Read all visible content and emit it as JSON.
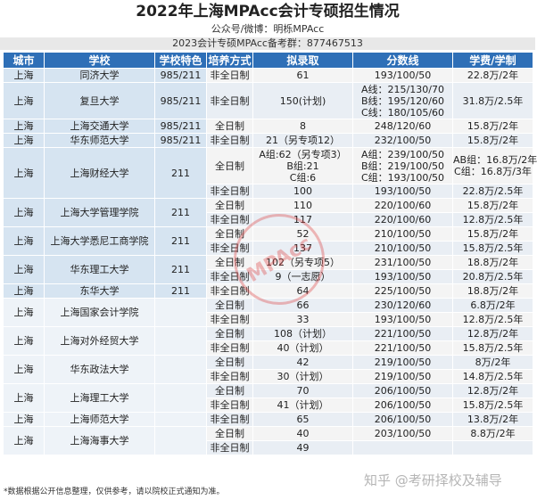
{
  "title": "2022年上海MPAcc会计专硕招生情况",
  "subtitle": "公众号/微博：明栎MPAcc",
  "contact": "2023会计专硕MPAcc备考群：877467513",
  "headers": [
    "城市",
    "学校",
    "学校特色",
    "培养方式",
    "拟录取",
    "分数线",
    "学费/学制"
  ],
  "note": "*数据根据公开信息整理，仅供参考，请以院校正式通知为准。",
  "watermark_seal": "MPAcc",
  "watermark_zhihu": "知乎 @考研择校及辅导",
  "colors": {
    "header": "#2e6fb7",
    "left_band": "#d6e4f1",
    "cell": "#f4f4f4"
  },
  "rows": [
    {
      "city": "上海",
      "school": "同济大学",
      "feature": "985/211",
      "mode": "非全日制",
      "admit": "61",
      "score": "193/100/50",
      "fee": "22.8万/2年"
    },
    {
      "city": "上海",
      "school": "复旦大学",
      "feature": "985/211",
      "mode": "非全日制",
      "admit": "150(计划)",
      "score": [
        "A线：215/130/70",
        "B线：195/120/60",
        "C线：180/105/60"
      ],
      "fee": "31.8万/2.5年"
    },
    {
      "city": "上海",
      "school": "上海交通大学",
      "feature": "985/211",
      "mode": "全日制",
      "admit": "8",
      "score": "248/120/60",
      "fee": "15.8万/2年"
    },
    {
      "city": "上海",
      "school": "华东师范大学",
      "feature": "985/211",
      "mode": "非全日制",
      "admit": "21（另专项12）",
      "score": "232/100/50",
      "fee": "15.8万/2年"
    },
    {
      "city": "上海",
      "school": "上海财经大学",
      "feature": "211",
      "sub": [
        {
          "mode": "全日制",
          "admit": [
            "A组:62（另专项3）",
            "B组:21",
            "C组:6"
          ],
          "score": [
            "A组：239/100/50",
            "B组：219/100/50",
            "C组：193/100/50"
          ],
          "fee": [
            "AB组：16.8万/2年",
            "C组：16.8万/3年"
          ]
        },
        {
          "mode": "非全日制",
          "admit": "100",
          "score": "193/100/50",
          "fee": "22.8万/2.5年"
        }
      ]
    },
    {
      "city": "上海",
      "school": "上海大学管理学院",
      "feature": "211",
      "sub": [
        {
          "mode": "全日制",
          "admit": "110",
          "score": "220/100/60",
          "fee": "15.8万/2年"
        },
        {
          "mode": "非全日制",
          "admit": "117",
          "score": "220/100/60",
          "fee": "12.8万/2.5年"
        }
      ]
    },
    {
      "city": "上海",
      "school": "上海大学悉尼工商学院",
      "feature": "211",
      "sub": [
        {
          "mode": "全日制",
          "admit": "52",
          "score": "210/100/50",
          "fee": "15.8万/2年"
        },
        {
          "mode": "非全日制",
          "admit": "137",
          "score": "210/100/50",
          "fee": "15.8万/2.5年"
        }
      ]
    },
    {
      "city": "上海",
      "school": "华东理工大学",
      "feature": "211",
      "sub": [
        {
          "mode": "全日制",
          "admit": "102（另专项5）",
          "score": "231/100/50",
          "fee": "18.8万/2年"
        },
        {
          "mode": "非全日制",
          "admit": "9（一志愿）",
          "score": "193/100/50",
          "fee": "20.8万/2.5年"
        }
      ]
    },
    {
      "city": "上海",
      "school": "东华大学",
      "feature": "211",
      "mode": "非全日制",
      "admit": "64",
      "score": "225/100/50",
      "fee": "18.8万/2年"
    },
    {
      "city": "上海",
      "school": "上海国家会计学院",
      "feature": "",
      "sub": [
        {
          "mode": "全日制",
          "admit": "66",
          "score": "230/120/60",
          "fee": "6.8万/2年"
        },
        {
          "mode": "非全日制",
          "admit": "33",
          "score": "193/100/50",
          "fee": "12.8万/2.5年"
        }
      ]
    },
    {
      "city": "上海",
      "school": "上海对外经贸大学",
      "feature": "",
      "sub": [
        {
          "mode": "全日制",
          "admit": "108（计划）",
          "score": "221/100/50",
          "fee": "12.8万/2年"
        },
        {
          "mode": "非全日制",
          "admit": "40（计划）",
          "score": "221/100/50",
          "fee": "15.8万/2.5年"
        }
      ]
    },
    {
      "city": "上海",
      "school": "华东政法大学",
      "feature": "",
      "sub": [
        {
          "mode": "全日制",
          "admit": "42",
          "score": "219/100/50",
          "fee": "8万/2年"
        },
        {
          "mode": "非全日制",
          "admit": "30（计划）",
          "score": "219/100/50",
          "fee": "14.8万/2.5年"
        }
      ]
    },
    {
      "city": "上海",
      "school": "上海理工大学",
      "feature": "",
      "sub": [
        {
          "mode": "全日制",
          "admit": "70",
          "score": "206/100/50",
          "fee": "12.8万/2年"
        },
        {
          "mode": "非全日制",
          "admit": "41（计划）",
          "score": "206/100/50",
          "fee": "15.8万/2.5年"
        }
      ]
    },
    {
      "city": "上海",
      "school": "上海师范大学",
      "feature": "",
      "mode": "非全日制",
      "admit": "65",
      "score": "206/100/50",
      "fee": "13.8万/2年"
    },
    {
      "city": "上海",
      "school": "上海海事大学",
      "feature": "",
      "sub": [
        {
          "mode": "全日制",
          "admit": "40",
          "score": "203/100/50",
          "fee": "8.8万/2年"
        },
        {
          "mode": "非全日制",
          "admit": "49",
          "score": "",
          "fee": ""
        }
      ]
    }
  ]
}
